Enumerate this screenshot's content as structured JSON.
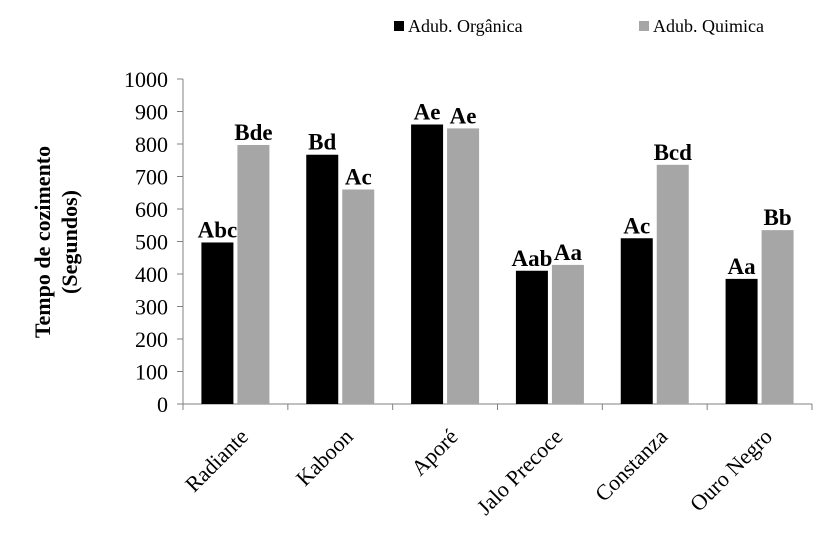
{
  "chart_data": {
    "type": "bar",
    "title": "",
    "xlabel": "",
    "ylabel_line1": "Tempo de cozimento",
    "ylabel_line2": "(Segundos)",
    "categories": [
      "Radiante",
      "Kaboon",
      "Aporé",
      "Jalo Precoce",
      "Constanza",
      "Ouro Negro"
    ],
    "series": [
      {
        "name": "Adub. Orgânica",
        "color": "#000000",
        "values": [
          497,
          767,
          860,
          410,
          510,
          385
        ],
        "labels": [
          "Abc",
          "Bd",
          "Ae",
          "Aab",
          "Ac",
          "Aa"
        ]
      },
      {
        "name": "Adub. Quimica",
        "color": "#a6a6a6",
        "values": [
          797,
          660,
          848,
          428,
          736,
          535
        ],
        "labels": [
          "Bde",
          "Ac",
          "Ae",
          "Aa",
          "Bcd",
          "Bb"
        ]
      }
    ],
    "ylim": [
      0,
      1000
    ],
    "yticks": [
      "0",
      "100",
      "200",
      "300",
      "400",
      "500",
      "600",
      "700",
      "800",
      "900",
      "1000"
    ],
    "grid": false,
    "legend_position": "top-right"
  }
}
